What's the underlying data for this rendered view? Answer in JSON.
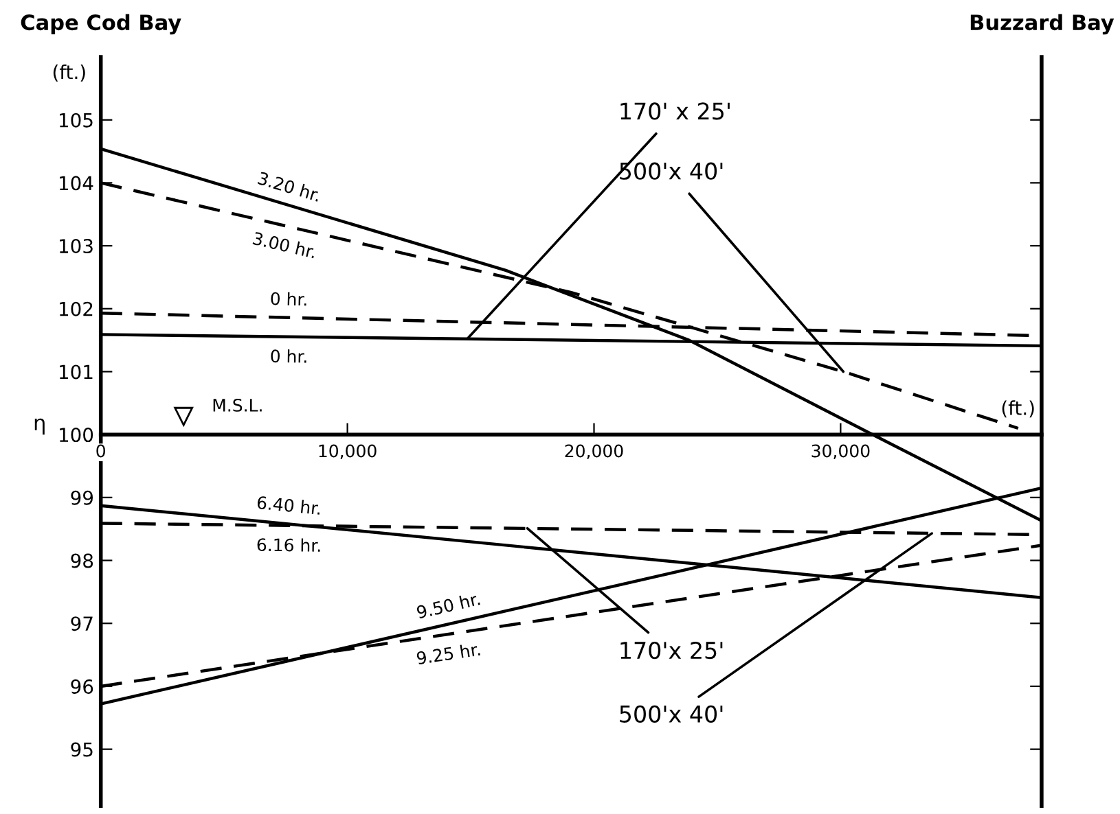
{
  "chart_data": {
    "type": "line",
    "xlabel": "(ft.)",
    "ylabel": "η",
    "x": [
      0,
      38150
    ],
    "series": [
      {
        "name": "3.20 hr.",
        "color": "#000000",
        "line_style": "solid",
        "x": [
          0,
          16420,
          23850,
          31300,
          38150
        ],
        "values": [
          104.54,
          102.61,
          101.5,
          100.0,
          98.63
        ]
      },
      {
        "name": "3.00 hr.",
        "color": "#000000",
        "line_style": "dashed",
        "x": [
          0,
          19050,
          30110,
          37200
        ],
        "values": [
          104.0,
          102.26,
          101.0,
          100.1
        ]
      },
      {
        "name": "0 hr.",
        "color": "#000000",
        "line_style": "dashed",
        "values": [
          101.93,
          101.57
        ]
      },
      {
        "name": "0 hr.",
        "color": "#000000",
        "line_style": "solid",
        "values": [
          101.59,
          101.41
        ]
      },
      {
        "name": "6.40 hr.",
        "color": "#000000",
        "line_style": "solid",
        "values": [
          98.87,
          97.41
        ]
      },
      {
        "name": "6.16 hr.",
        "color": "#000000",
        "line_style": "dashed",
        "values": [
          98.59,
          98.41
        ]
      },
      {
        "name": "9.50 hr.",
        "color": "#000000",
        "line_style": "solid",
        "values": [
          95.72,
          99.15
        ]
      },
      {
        "name": "9.25 hr.",
        "color": "#000000",
        "line_style": "dashed",
        "values": [
          96.0,
          98.24
        ]
      }
    ],
    "xlim": [
      0,
      38150
    ],
    "ylim": [
      94.1,
      106
    ],
    "xticks": [
      0,
      {
        "value": 10000,
        "label": "10,000"
      },
      {
        "value": 20000,
        "label": "20,000"
      },
      {
        "value": 30000,
        "label": "30,000"
      }
    ],
    "yticks": [
      95,
      96,
      97,
      98,
      99,
      100,
      101,
      102,
      103,
      104,
      105
    ],
    "annotations": [
      "Cape Cod Bay",
      "Buzzard Bay",
      "(ft.)",
      "M.S.L.",
      {
        "text": "170' x 25'",
        "x": 14860,
        "y": 101.52
      },
      {
        "text": "500'x 40'",
        "x": 30110,
        "y": 101.0
      },
      {
        "text": "170'x 25'",
        "x": 17300,
        "y": 98.51
      },
      {
        "text": "500'x 40'",
        "x": 33700,
        "y": 98.43
      }
    ],
    "grid": false,
    "legend": false,
    "marker": "none"
  }
}
